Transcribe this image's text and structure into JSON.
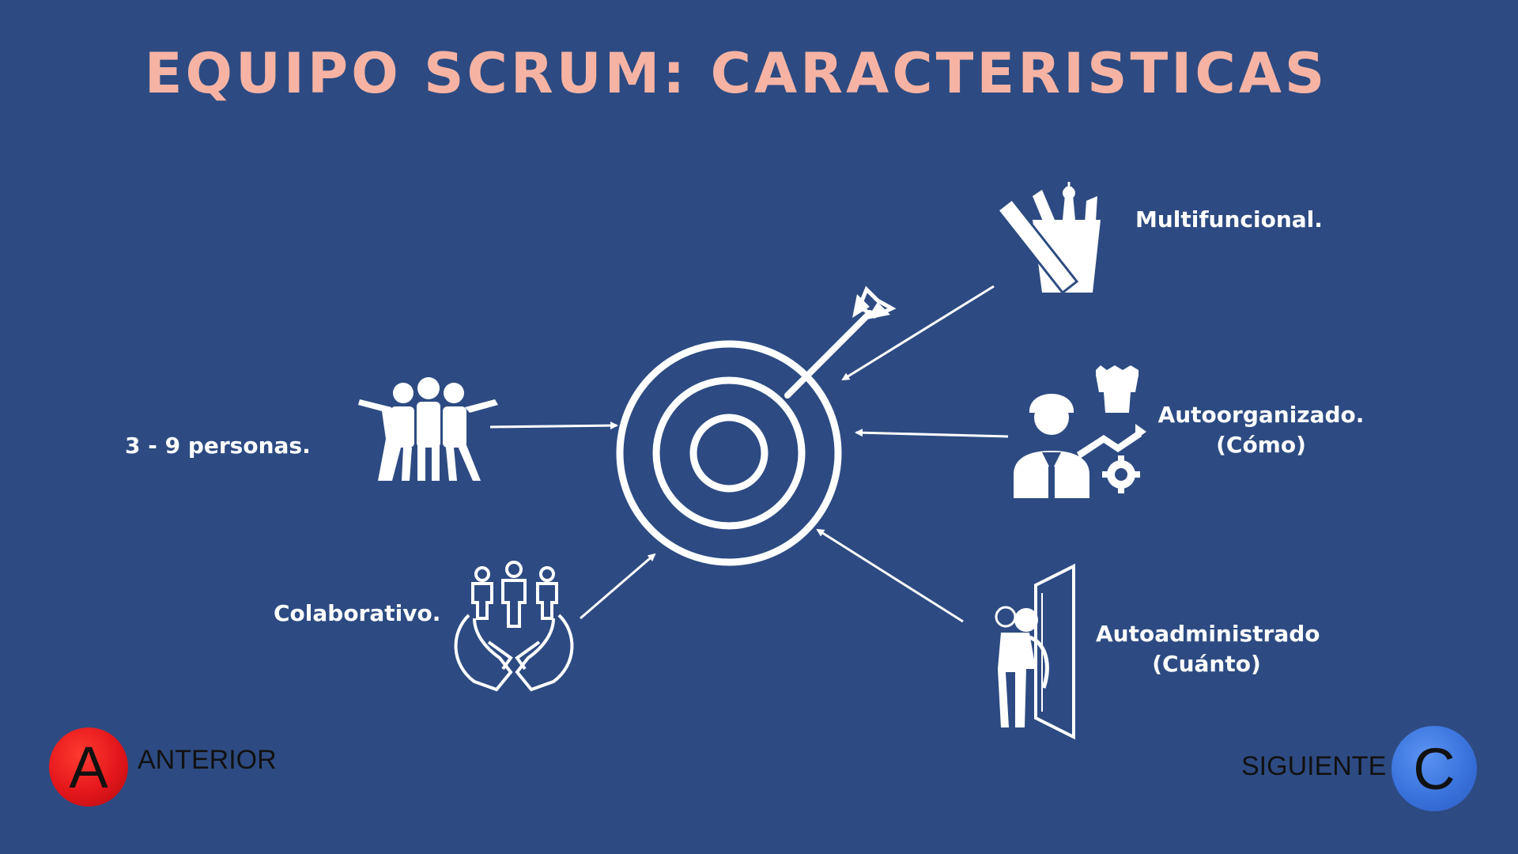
{
  "slide": {
    "title": "EQUIPO SCRUM: CARACTERISTICAS",
    "background_color": "#2d4b82",
    "title_color": "#f6b3a4"
  },
  "features": {
    "size": {
      "text": "3 - 9 personas.",
      "icon": "team-hugging-icon"
    },
    "collaborative": {
      "text": "Colaborativo.",
      "icon": "hands-holding-people-icon"
    },
    "cross_functional": {
      "text": "Multifuncional.",
      "icon": "tools-cup-icon"
    },
    "self_organized": {
      "line1": "Autoorganizado.",
      "line2": "(Cómo)",
      "icon": "manager-gear-fist-icon"
    },
    "self_managed": {
      "line1": "Autoadministrado",
      "line2": "(Cuánto)",
      "icon": "self-hug-mirror-icon"
    }
  },
  "center": {
    "icon": "target-arrow-icon"
  },
  "navigation": {
    "prev": {
      "letter": "A",
      "label": "ANTERIOR",
      "color": "#e3161b"
    },
    "next": {
      "letter": "C",
      "label": "SIGUIENTE",
      "color": "#3a73dd"
    }
  }
}
